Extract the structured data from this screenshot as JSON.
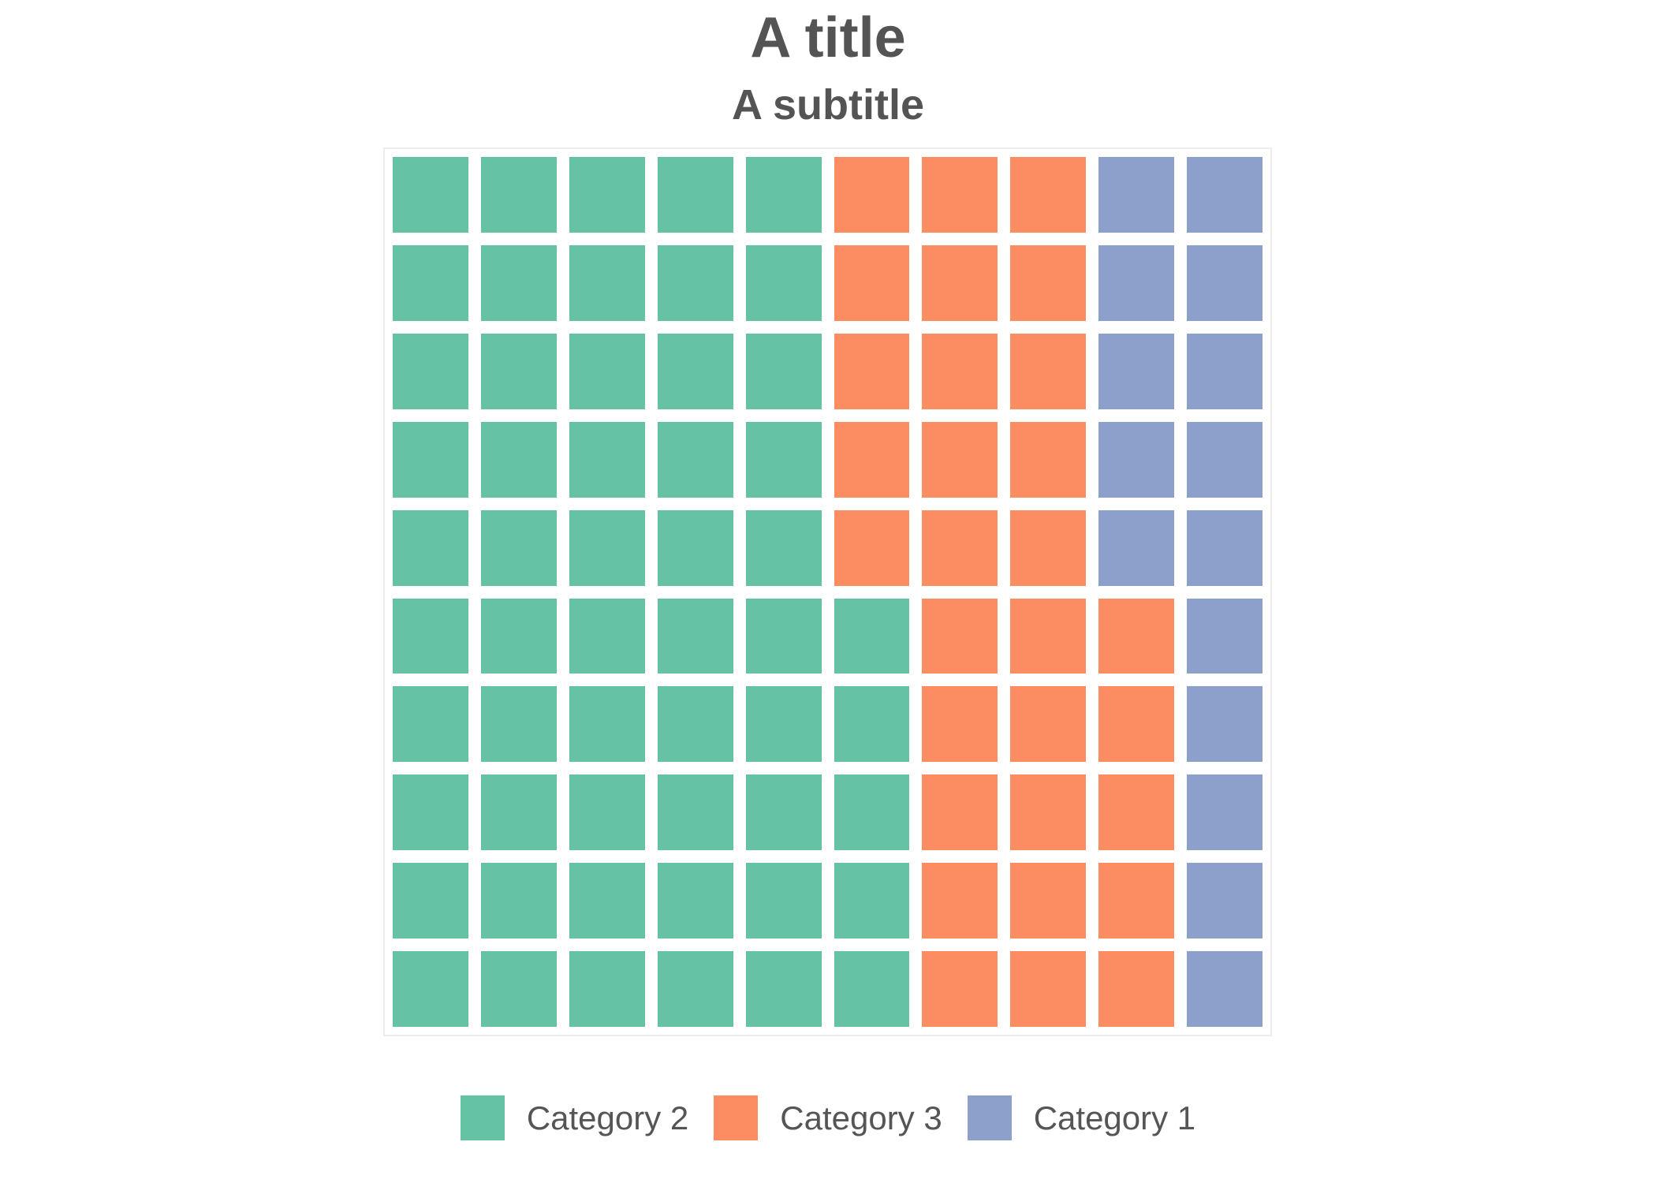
{
  "header": {
    "title": "A title",
    "subtitle": "A subtitle"
  },
  "chart_data": {
    "type": "waffle",
    "title": "A title",
    "subtitle": "A subtitle",
    "grid": {
      "rows": 10,
      "columns": 10,
      "total_cells": 100
    },
    "fill_order": "column-major, bottom-to-top within each column, columns left-to-right",
    "categories": [
      "Category 2",
      "Category 3",
      "Category 1"
    ],
    "series": [
      {
        "name": "Category 2",
        "value": 55,
        "color": "#66c2a5"
      },
      {
        "name": "Category 3",
        "value": 30,
        "color": "#fc8d62"
      },
      {
        "name": "Category 1",
        "value": 15,
        "color": "#8da0cb"
      }
    ],
    "legend_position": "bottom-center",
    "legend": [
      {
        "label": "Category 2",
        "color": "#66c2a5"
      },
      {
        "label": "Category 3",
        "color": "#fc8d62"
      },
      {
        "label": "Category 1",
        "color": "#8da0cb"
      }
    ],
    "row_patterns": {
      "rows_1_to_5": [
        "green",
        "green",
        "green",
        "green",
        "green",
        "orange",
        "orange",
        "orange",
        "blue",
        "blue"
      ],
      "rows_6_to_10": [
        "green",
        "green",
        "green",
        "green",
        "green",
        "green",
        "orange",
        "orange",
        "orange",
        "blue"
      ]
    }
  },
  "style": {
    "title_color": "#545454",
    "legend_text_color": "#555555",
    "plot_border_color": "#ececec",
    "background_color": "#ffffff",
    "cell_gap_color": "#ffffff"
  }
}
